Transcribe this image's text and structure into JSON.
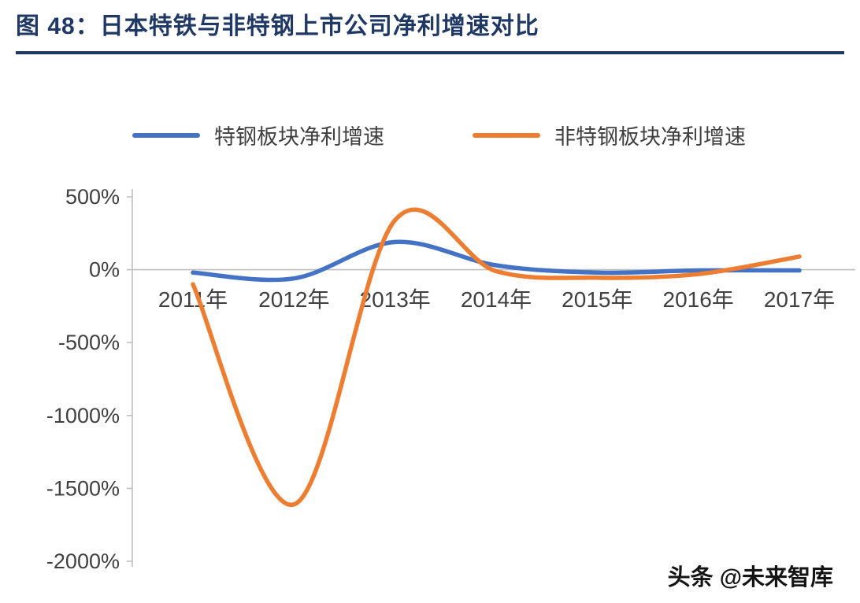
{
  "header": {
    "title": "图 48：日本特铁与非特钢上市公司净利增速对比"
  },
  "legend": {
    "items": [
      {
        "label": "特钢板块净利增速",
        "color": "#4472C4"
      },
      {
        "label": "非特钢板块净利增速",
        "color": "#ED7D31"
      }
    ]
  },
  "chart_data": {
    "type": "line",
    "title": "日本特铁与非特钢上市公司净利增速对比",
    "categories": [
      "2011年",
      "2012年",
      "2013年",
      "2014年",
      "2015年",
      "2016年",
      "2017年"
    ],
    "series": [
      {
        "name": "特钢板块净利增速",
        "color": "#4472C4",
        "values": [
          -20,
          -60,
          190,
          30,
          -20,
          -5,
          -5
        ]
      },
      {
        "name": "非特钢板块净利增速",
        "color": "#ED7D31",
        "values": [
          -100,
          -1610,
          340,
          -10,
          -55,
          -30,
          90
        ]
      }
    ],
    "ylim": [
      -2000,
      500
    ],
    "yticks": [
      500,
      0,
      -500,
      -1000,
      -1500,
      -2000
    ],
    "ytick_labels": [
      "500%",
      "0%",
      "-500%",
      "-1000%",
      "-1500%",
      "-2000%"
    ],
    "unit": "%",
    "grid": false,
    "legend_position": "top",
    "smooth": true
  },
  "watermark": {
    "text": "头条 @未来智库"
  },
  "colors": {
    "title": "#1F3864",
    "axis_line": "#BFBFBF",
    "tick_text": "#404040",
    "series_blue": "#4472C4",
    "series_orange": "#ED7D31"
  }
}
